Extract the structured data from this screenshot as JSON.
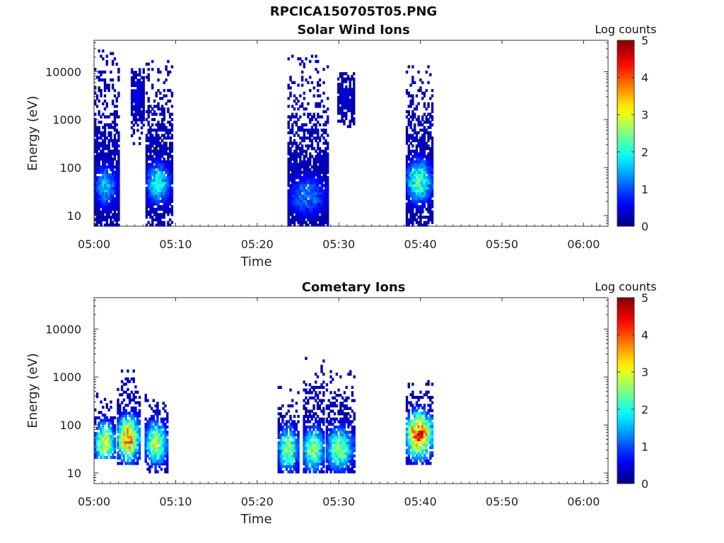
{
  "figure": {
    "title": "RPCICA150705T05.PNG"
  },
  "chart_data": [
    {
      "type": "heatmap",
      "title": "Solar Wind Ions",
      "xlabel": "Time",
      "ylabel": "Energy (eV)",
      "x_ticks": [
        "05:00",
        "05:10",
        "05:20",
        "05:30",
        "05:40",
        "05:50",
        "06:00"
      ],
      "x_range_minutes": [
        0,
        63
      ],
      "y_scale": "log",
      "y_ticks": [
        "10",
        "100",
        "1000",
        "10000"
      ],
      "y_range": [
        6,
        45000
      ],
      "colorbar": {
        "label": "Log counts",
        "ticks": [
          "0",
          "1",
          "2",
          "3",
          "4",
          "5"
        ],
        "range": [
          0,
          5
        ],
        "colormap": "jet"
      },
      "bursts": [
        {
          "t0": 0.0,
          "t1": 2.9,
          "e_min": 6,
          "e_max": 28000,
          "peak": 1.6,
          "peak_e": 40
        },
        {
          "t0": 4.5,
          "t1": 6.0,
          "e_min": 300,
          "e_max": 11000,
          "peak": 0.6,
          "peak_e": 3000
        },
        {
          "t0": 6.3,
          "t1": 9.5,
          "e_min": 6,
          "e_max": 17000,
          "peak": 1.9,
          "peak_e": 45
        },
        {
          "t0": 23.7,
          "t1": 28.7,
          "e_min": 6,
          "e_max": 22000,
          "peak": 1.3,
          "peak_e": 25
        },
        {
          "t0": 29.8,
          "t1": 31.8,
          "e_min": 600,
          "e_max": 9000,
          "peak": 0.5,
          "peak_e": 2500
        },
        {
          "t0": 38.2,
          "t1": 41.5,
          "e_min": 6,
          "e_max": 12000,
          "peak": 2.4,
          "peak_e": 50
        }
      ]
    },
    {
      "type": "heatmap",
      "title": "Cometary Ions",
      "xlabel": "Time",
      "ylabel": "Energy (eV)",
      "x_ticks": [
        "05:00",
        "05:10",
        "05:20",
        "05:30",
        "05:40",
        "05:50",
        "06:00"
      ],
      "x_range_minutes": [
        0,
        63
      ],
      "y_scale": "log",
      "y_ticks": [
        "10",
        "100",
        "1000",
        "10000"
      ],
      "y_range": [
        6,
        45000
      ],
      "colorbar": {
        "label": "Log counts",
        "ticks": [
          "0",
          "1",
          "2",
          "3",
          "4",
          "5"
        ],
        "range": [
          0,
          5
        ],
        "colormap": "jet"
      },
      "bursts": [
        {
          "t0": 0.0,
          "t1": 2.6,
          "e_min": 20,
          "e_max": 500,
          "peak": 3.1,
          "peak_e": 40
        },
        {
          "t0": 2.8,
          "t1": 5.6,
          "e_min": 15,
          "e_max": 1400,
          "peak": 3.9,
          "peak_e": 50
        },
        {
          "t0": 6.2,
          "t1": 9.0,
          "e_min": 10,
          "e_max": 400,
          "peak": 2.9,
          "peak_e": 40
        },
        {
          "t0": 22.5,
          "t1": 25.0,
          "e_min": 10,
          "e_max": 600,
          "peak": 2.8,
          "peak_e": 30
        },
        {
          "t0": 25.6,
          "t1": 28.2,
          "e_min": 10,
          "e_max": 2400,
          "peak": 2.9,
          "peak_e": 30
        },
        {
          "t0": 28.4,
          "t1": 31.8,
          "e_min": 10,
          "e_max": 1500,
          "peak": 2.7,
          "peak_e": 30
        },
        {
          "t0": 38.2,
          "t1": 41.5,
          "e_min": 15,
          "e_max": 800,
          "peak": 4.4,
          "peak_e": 60
        }
      ]
    }
  ]
}
